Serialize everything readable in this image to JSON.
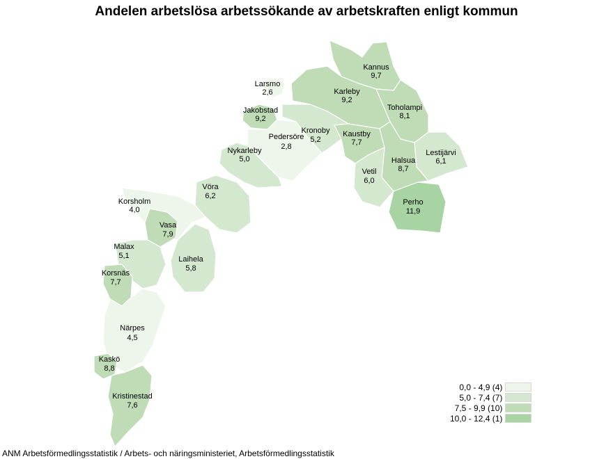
{
  "title": "Andelen arbetslösa arbetssökande av arbetskraften enligt kommun",
  "colors": {
    "class1": "#eef5ea",
    "class2": "#d4e7cf",
    "class3": "#bfdcb7",
    "class4": "#a8d3a2"
  },
  "municipalities": [
    {
      "name": "Larsmo",
      "value": "2,6",
      "cls": "class1"
    },
    {
      "name": "Kannus",
      "value": "9,7",
      "cls": "class3"
    },
    {
      "name": "Karleby",
      "value": "9,2",
      "cls": "class3"
    },
    {
      "name": "Toholampi",
      "value": "8,1",
      "cls": "class3"
    },
    {
      "name": "Jakobstad",
      "value": "9,2",
      "cls": "class3"
    },
    {
      "name": "Pedersöre",
      "value": "2,8",
      "cls": "class1"
    },
    {
      "name": "Kronoby",
      "value": "5,2",
      "cls": "class2"
    },
    {
      "name": "Kaustby",
      "value": "7,7",
      "cls": "class3"
    },
    {
      "name": "Lestijärvi",
      "value": "6,1",
      "cls": "class2"
    },
    {
      "name": "Nykarleby",
      "value": "5,0",
      "cls": "class2"
    },
    {
      "name": "Halsua",
      "value": "8,7",
      "cls": "class3"
    },
    {
      "name": "Vetil",
      "value": "6,0",
      "cls": "class2"
    },
    {
      "name": "Vöra",
      "value": "6,2",
      "cls": "class2"
    },
    {
      "name": "Perho",
      "value": "11,9",
      "cls": "class4"
    },
    {
      "name": "Korsholm",
      "value": "4,0",
      "cls": "class1"
    },
    {
      "name": "Vasa",
      "value": "7,9",
      "cls": "class3"
    },
    {
      "name": "Malax",
      "value": "5,1",
      "cls": "class2"
    },
    {
      "name": "Laihela",
      "value": "5,8",
      "cls": "class2"
    },
    {
      "name": "Korsnäs",
      "value": "7,7",
      "cls": "class3"
    },
    {
      "name": "Närpes",
      "value": "4,5",
      "cls": "class1"
    },
    {
      "name": "Kaskö",
      "value": "8,8",
      "cls": "class3"
    },
    {
      "name": "Kristinestad",
      "value": "7,6",
      "cls": "class3"
    }
  ],
  "legend": [
    {
      "label": "0,0 - 4,9 (4)",
      "cls": "class1"
    },
    {
      "label": "5,0 - 7,4 (7)",
      "cls": "class2"
    },
    {
      "label": "7,5 - 9,9 (10)",
      "cls": "class3"
    },
    {
      "label": "10,0 - 12,4 (1)",
      "cls": "class4"
    }
  ],
  "source": "ANM Arbetsförmedlingsstatistik / Arbets- och näringsministeriet, Arbetsförmedlingsstatistik"
}
